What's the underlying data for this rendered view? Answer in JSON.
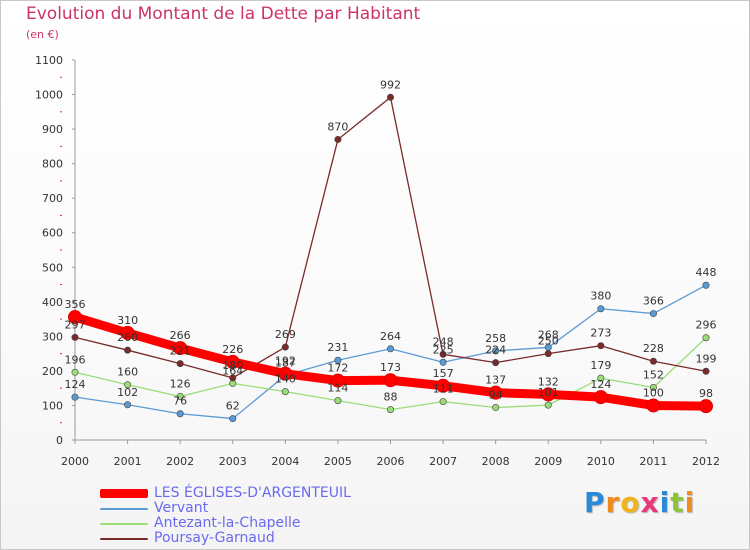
{
  "title": "Evolution du Montant de la Dette par Habitant",
  "subtitle": "(en €)",
  "brand": {
    "letters": [
      "P",
      "r",
      "o",
      "x",
      "i",
      "t",
      "i"
    ],
    "colors": [
      "#2a8ad8",
      "#f08c1e",
      "#f0b41e",
      "#e83a7a",
      "#2a8ad8",
      "#8cc43c",
      "#f08c1e"
    ]
  },
  "chart_data": {
    "type": "line",
    "x": [
      "2000",
      "2001",
      "2002",
      "2003",
      "2004",
      "2005",
      "2006",
      "2007",
      "2008",
      "2009",
      "2010",
      "2011",
      "2012"
    ],
    "ylim": [
      0,
      1100
    ],
    "yticks": [
      "0",
      "100",
      "200",
      "300",
      "400",
      "500",
      "600",
      "700",
      "800",
      "900",
      "1000",
      "1100"
    ],
    "grid": false,
    "legend_position": "bottom-left",
    "series": [
      {
        "name": "LES ÉGLISES-D'ARGENTEUIL",
        "color": "#ff0000",
        "values": [
          356,
          310,
          266,
          226,
          192,
          172,
          173,
          157,
          137,
          132,
          124,
          100,
          98
        ],
        "labels": [
          "356",
          "310",
          "266",
          "226",
          "192",
          "172",
          "173",
          "157",
          "137",
          "132",
          "124",
          "100",
          "98"
        ]
      },
      {
        "name": "Vervant",
        "color": "#5b9bd5",
        "values": [
          124,
          102,
          76,
          62,
          187,
          231,
          264,
          225,
          258,
          268,
          380,
          366,
          448
        ],
        "labels": [
          "124",
          "102",
          "76",
          "62",
          "187",
          "231",
          "264",
          "225",
          "258",
          "268",
          "380",
          "366",
          "448"
        ]
      },
      {
        "name": "Antezant-la-Chapelle",
        "color": "#99dd77",
        "values": [
          196,
          160,
          126,
          164,
          140,
          114,
          88,
          111,
          94,
          101,
          179,
          152,
          296
        ],
        "labels": [
          "196",
          "160",
          "126",
          "164",
          "140",
          "114",
          "88",
          "111",
          "94",
          "101",
          "179",
          "152",
          "296"
        ]
      },
      {
        "name": "Poursay-Garnaud",
        "color": "#7a2a2a",
        "values": [
          297,
          260,
          221,
          180,
          269,
          870,
          992,
          248,
          224,
          250,
          273,
          228,
          199
        ],
        "labels": [
          "297",
          "260",
          "221",
          "180",
          "269",
          "870",
          "992",
          "248",
          "224",
          "250",
          "273",
          "228",
          "199"
        ]
      }
    ]
  }
}
